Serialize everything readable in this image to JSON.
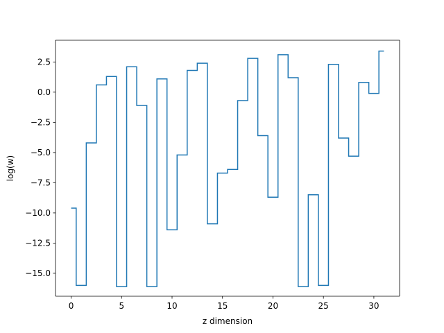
{
  "chart_data": {
    "type": "line",
    "drawstyle": "steps-mid",
    "title": "",
    "xlabel": "z dimension",
    "ylabel": "log(w)",
    "xlim": [
      -1.55,
      32.55
    ],
    "ylim": [
      -16.9,
      4.3
    ],
    "xticks": [
      0,
      5,
      10,
      15,
      20,
      25,
      30
    ],
    "xtick_labels": [
      "0",
      "5",
      "10",
      "15",
      "20",
      "25",
      "30"
    ],
    "yticks": [
      2.5,
      0.0,
      -2.5,
      -5.0,
      -7.5,
      -10.0,
      -12.5,
      -15.0
    ],
    "ytick_labels": [
      "2.5",
      "0.0",
      "−2.5",
      "−5.0",
      "−7.5",
      "−10.0",
      "−12.5",
      "−15.0"
    ],
    "grid": false,
    "legend": "none",
    "series": [
      {
        "color": "#1f77b4",
        "x": [
          0,
          1,
          2,
          3,
          4,
          5,
          6,
          7,
          8,
          9,
          10,
          11,
          12,
          13,
          14,
          15,
          16,
          17,
          18,
          19,
          20,
          21,
          22,
          23,
          24,
          25,
          26,
          27,
          28,
          29,
          30,
          31
        ],
        "y": [
          -9.6,
          -16.0,
          -4.2,
          0.6,
          1.3,
          -16.1,
          2.1,
          -1.1,
          -16.1,
          1.1,
          -11.4,
          -5.2,
          1.8,
          2.4,
          -10.9,
          -6.7,
          -6.4,
          -0.7,
          2.8,
          -3.6,
          -8.7,
          3.1,
          1.2,
          -16.1,
          -8.5,
          -16.0,
          2.3,
          -3.8,
          -5.3,
          0.8,
          -0.1,
          3.4
        ]
      }
    ]
  }
}
